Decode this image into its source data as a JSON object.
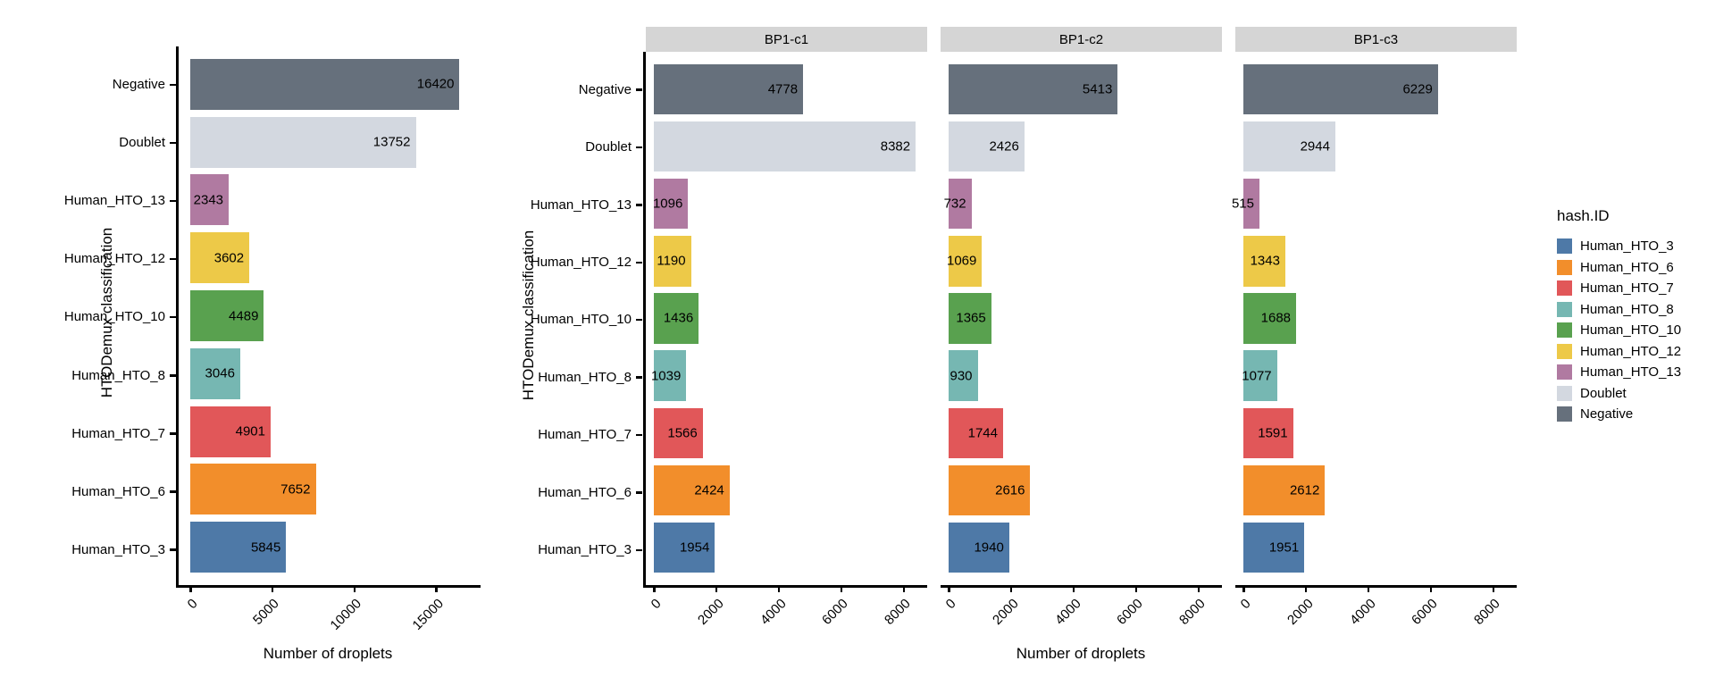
{
  "chart_data": {
    "type": "bar",
    "orientation": "horizontal",
    "categories_top_to_bottom": [
      "Negative",
      "Doublet",
      "Human_HTO_13",
      "Human_HTO_12",
      "Human_HTO_10",
      "Human_HTO_8",
      "Human_HTO_7",
      "Human_HTO_6",
      "Human_HTO_3"
    ],
    "xlabel": "Number of droplets",
    "ylabel": "HTODemux classification",
    "grid": "off",
    "bar_value_labels": "inside-right",
    "charts": [
      {
        "id": "overall",
        "facet_label": "",
        "values": [
          16420,
          13752,
          2343,
          3602,
          4489,
          3046,
          4901,
          7652,
          5845
        ],
        "xticks": [
          0,
          5000,
          10000,
          15000
        ],
        "xlim": [
          0,
          17700
        ]
      },
      {
        "id": "bp1c1",
        "facet_label": "BP1-c1",
        "values": [
          4778,
          8382,
          1096,
          1190,
          1436,
          1039,
          1566,
          2424,
          1954
        ],
        "xticks": [
          0,
          2000,
          4000,
          6000,
          8000
        ],
        "xlim": [
          0,
          8750
        ]
      },
      {
        "id": "bp1c2",
        "facet_label": "BP1-c2",
        "values": [
          5413,
          2426,
          732,
          1069,
          1365,
          930,
          1744,
          2616,
          1940
        ],
        "xticks": [
          0,
          2000,
          4000,
          6000,
          8000
        ],
        "xlim": [
          0,
          8750
        ]
      },
      {
        "id": "bp1c3",
        "facet_label": "BP1-c3",
        "values": [
          6229,
          2944,
          515,
          1343,
          1688,
          1077,
          1591,
          2612,
          1951
        ],
        "xticks": [
          0,
          2000,
          4000,
          6000,
          8000
        ],
        "xlim": [
          0,
          8750
        ]
      }
    ]
  },
  "category_colors": {
    "Human_HTO_3": "#4E79A7",
    "Human_HTO_6": "#F28E2B",
    "Human_HTO_7": "#E15759",
    "Human_HTO_8": "#76B7B2",
    "Human_HTO_10": "#59A14F",
    "Human_HTO_12": "#EDC948",
    "Human_HTO_13": "#B07AA1",
    "Doublet": "#D3D8E0",
    "Negative": "#66707C"
  },
  "legend": {
    "title": "hash.ID",
    "items": [
      {
        "label": "Human_HTO_3",
        "color": "#4E79A7"
      },
      {
        "label": "Human_HTO_6",
        "color": "#F28E2B"
      },
      {
        "label": "Human_HTO_7",
        "color": "#E15759"
      },
      {
        "label": "Human_HTO_8",
        "color": "#76B7B2"
      },
      {
        "label": "Human_HTO_10",
        "color": "#59A14F"
      },
      {
        "label": "Human_HTO_12",
        "color": "#EDC948"
      },
      {
        "label": "Human_HTO_13",
        "color": "#B07AA1"
      },
      {
        "label": "Doublet",
        "color": "#D3D8E0"
      },
      {
        "label": "Negative",
        "color": "#66707C"
      }
    ]
  },
  "style": {
    "strip_background": "#D5D5D5",
    "axis_color": "#000000",
    "text_color": "#000000"
  }
}
